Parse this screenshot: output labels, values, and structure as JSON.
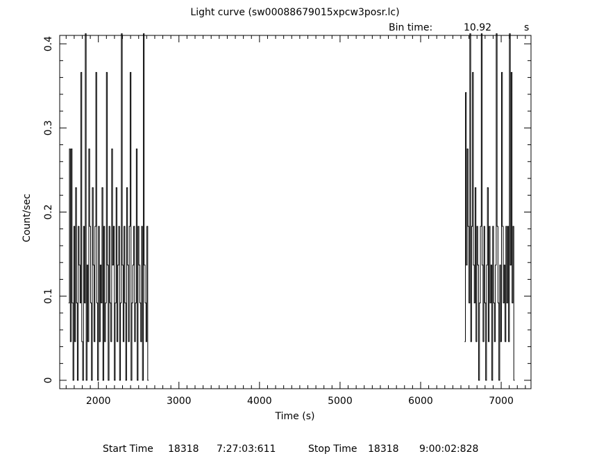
{
  "header": {
    "title": "Light curve (sw00088679015xpcw3posr.lc)",
    "bin_label": "Bin time:",
    "bin_value": "10.92",
    "bin_unit": "s"
  },
  "footer": {
    "start_label": "Start Time",
    "start_day": "18318",
    "start_time": "7:27:03:611",
    "stop_label": "Stop Time",
    "stop_day": "18318",
    "stop_time": "9:00:02:828"
  },
  "chart_data": {
    "type": "line",
    "title": "Light curve (sw00088679015xpcw3posr.lc)",
    "xlabel": "Time (s)",
    "ylabel": "Count/sec",
    "xlim": [
      1520,
      7370
    ],
    "ylim": [
      -0.01,
      0.41
    ],
    "x_ticks": [
      2000,
      3000,
      4000,
      5000,
      6000,
      7000
    ],
    "y_ticks": [
      0,
      0.1,
      0.2,
      0.3,
      0.4
    ],
    "x_tick_labels": [
      "2000",
      "3000",
      "4000",
      "5000",
      "6000",
      "7000"
    ],
    "y_tick_labels": [
      "0",
      "0.1",
      "0.2",
      "0.3",
      "0.4"
    ],
    "bin_time": 10.92,
    "grid": false,
    "series": [
      {
        "segment": 1,
        "x_start": 1630,
        "bin_width": 10.92,
        "values": [
          0.092,
          0.275,
          0.046,
          0.275,
          0.092,
          0,
          0.183,
          0.046,
          0.229,
          0.092,
          0,
          0.183,
          0.137,
          0.092,
          0.366,
          0.046,
          0,
          0.183,
          0.092,
          0.412,
          0,
          0.137,
          0.046,
          0.275,
          0.183,
          0.092,
          0,
          0.229,
          0.137,
          0.046,
          0.183,
          0.366,
          0.092,
          0,
          0.183,
          0.046,
          0.137,
          0.092,
          0.229,
          0,
          0.183,
          0.046,
          0.092,
          0.366,
          0.137,
          0,
          0.183,
          0.092,
          0.046,
          0.275,
          0.137,
          0.183,
          0,
          0.092,
          0.229,
          0.046,
          0.137,
          0.183,
          0,
          0.092,
          0.412,
          0.137,
          0.046,
          0.183,
          0.092,
          0,
          0.229,
          0.137,
          0.046,
          0.183,
          0.366,
          0,
          0.092,
          0.137,
          0.183,
          0.046,
          0.092,
          0.275,
          0,
          0.183,
          0.137,
          0.092,
          0.046,
          0.183,
          0,
          0.412,
          0.137,
          0.092,
          0.046,
          0.183,
          0
        ]
      },
      {
        "segment": 2,
        "x_start": 6545,
        "bin_width": 10.92,
        "values": [
          0.046,
          0.342,
          0.137,
          0.275,
          0.183,
          0.092,
          0.412,
          0.046,
          0.183,
          0.366,
          0.137,
          0.092,
          0.229,
          0.046,
          0.183,
          0.137,
          0,
          0.092,
          0.183,
          0.412,
          0.137,
          0.046,
          0.183,
          0.092,
          0,
          0.137,
          0.229,
          0.046,
          0.183,
          0.092,
          0.137,
          0,
          0.183,
          0.092,
          0.046,
          0.137,
          0.412,
          0.183,
          0.092,
          0,
          0.137,
          0.046,
          0.366,
          0.183,
          0.092,
          0.137,
          0.046,
          0.183,
          0.092,
          0.183,
          0.046,
          0.412,
          0.137,
          0.366,
          0.092,
          0.183,
          0
        ]
      }
    ]
  }
}
